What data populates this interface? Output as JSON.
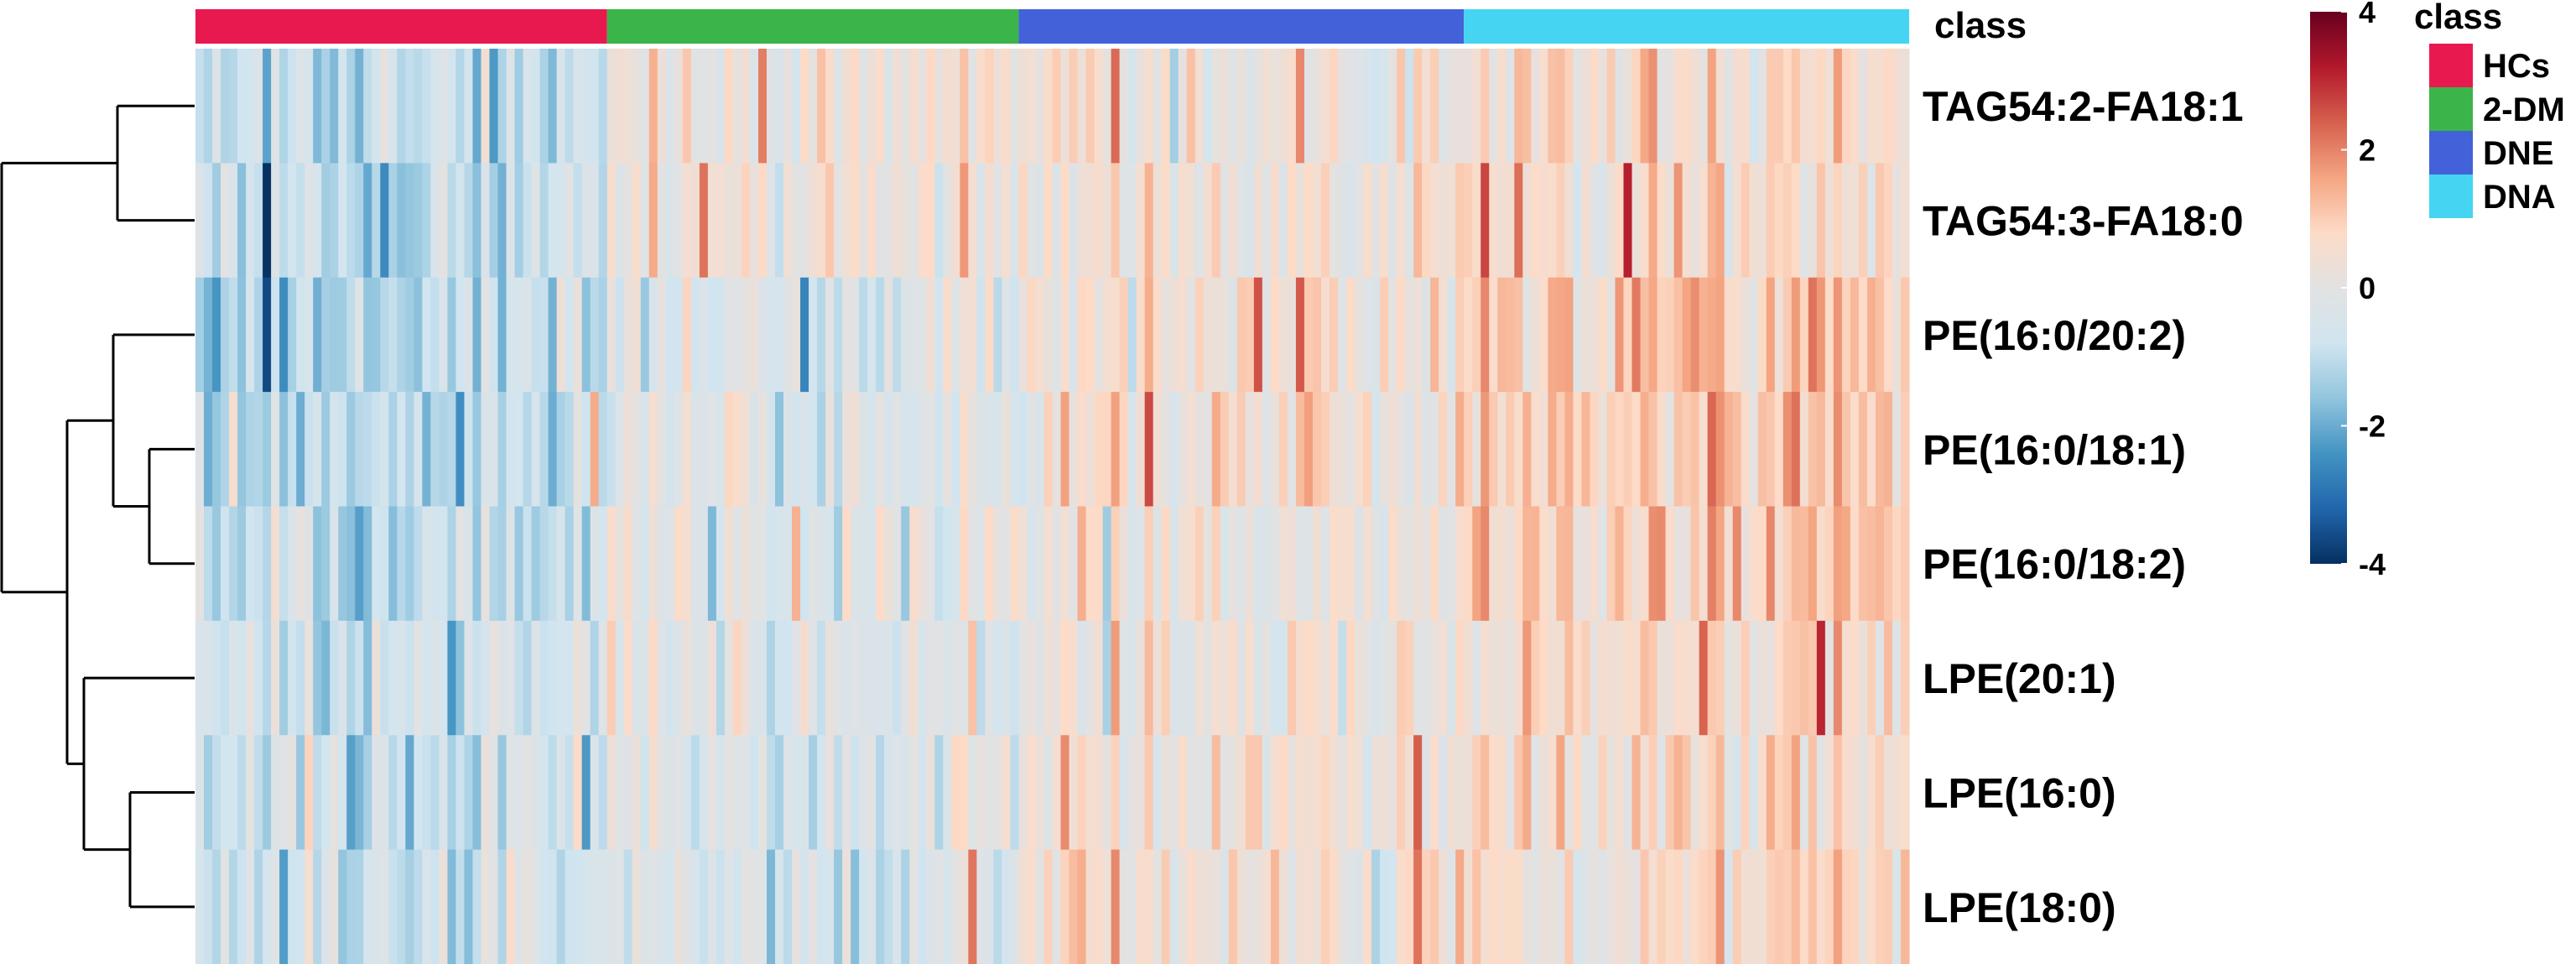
{
  "chart_data": {
    "type": "heatmap",
    "rows": [
      "TAG54:2-FA18:1",
      "TAG54:3-FA18:0",
      "PE(16:0/20:2)",
      "PE(16:0/18:1)",
      "PE(16:0/18:2)",
      "LPE(20:1)",
      "LPE(16:0)",
      "LPE(18:0)"
    ],
    "annotation_title": "class",
    "groups": [
      {
        "name": "HCs",
        "color": "#E8194F",
        "n": 49
      },
      {
        "name": "2-DM",
        "color": "#3BB54A",
        "n": 49
      },
      {
        "name": "DNE",
        "color": "#4361D9",
        "n": 53
      },
      {
        "name": "DNA",
        "color": "#45D5F2",
        "n": 53
      }
    ],
    "row_group_means": [
      [
        -1.0,
        0.3,
        0.4,
        0.6
      ],
      [
        -1.0,
        0.3,
        0.4,
        0.6
      ],
      [
        -1.1,
        -0.2,
        0.4,
        1.0
      ],
      [
        -1.1,
        -0.1,
        0.3,
        1.0
      ],
      [
        -1.0,
        -0.1,
        0.3,
        1.0
      ],
      [
        -0.8,
        -0.2,
        0.2,
        0.6
      ],
      [
        -0.8,
        -0.3,
        0.4,
        0.6
      ],
      [
        -0.8,
        -0.4,
        0.4,
        0.6
      ]
    ],
    "color_scale": {
      "min": -4,
      "max": 4,
      "ticks": [
        4,
        2,
        0,
        -2,
        -4
      ],
      "colors": [
        "#053061",
        "#2166AC",
        "#4393C3",
        "#92C5DE",
        "#D1E5F0",
        "#E2E2E2",
        "#FDDBC7",
        "#F4A582",
        "#D6604D",
        "#B2182B",
        "#67001F"
      ]
    },
    "legend_title": "class",
    "legend_labels": [
      "HCs",
      "2-DM",
      "DNE",
      "DNA"
    ],
    "dendrogram": "row clustering tree",
    "xlabel": "",
    "ylabel": ""
  }
}
